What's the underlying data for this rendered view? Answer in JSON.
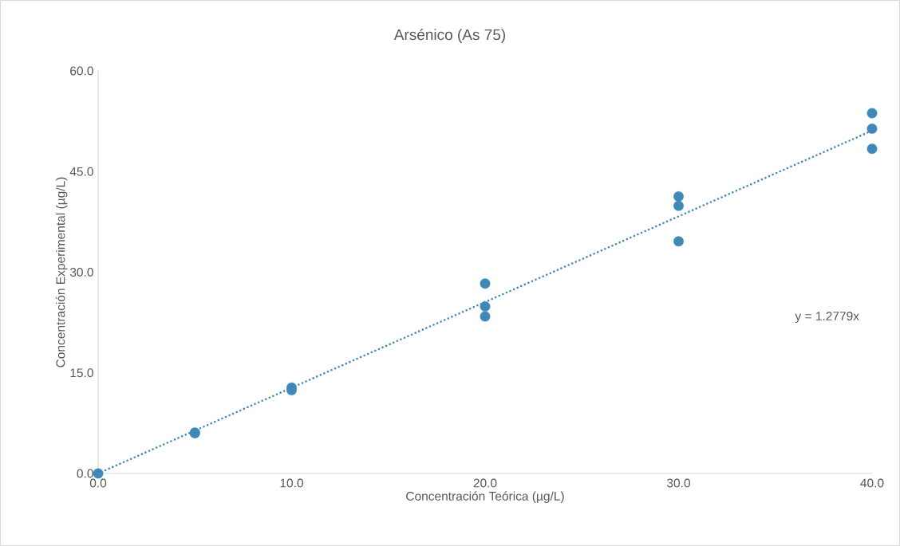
{
  "chart_data": {
    "type": "scatter",
    "title": "Arsénico (As 75)",
    "xlabel": "Concentración Teórica (µg/L)",
    "ylabel": "Concentración Experimental (µg/L)",
    "xlim": [
      0,
      40
    ],
    "ylim": [
      0,
      60
    ],
    "xticks": [
      {
        "value": 0,
        "label": "0.0"
      },
      {
        "value": 10,
        "label": "10.0"
      },
      {
        "value": 20,
        "label": "20.0"
      },
      {
        "value": 30,
        "label": "30.0"
      },
      {
        "value": 40,
        "label": "40.0"
      }
    ],
    "yticks": [
      {
        "value": 0,
        "label": "0.0"
      },
      {
        "value": 15,
        "label": "15.0"
      },
      {
        "value": 30,
        "label": "30.0"
      },
      {
        "value": 45,
        "label": "45.0"
      },
      {
        "value": 60,
        "label": "60.0"
      }
    ],
    "grid": false,
    "series": [
      {
        "marker": "circle",
        "color": "#3f88b8",
        "x": [
          0,
          5,
          5,
          10,
          10,
          20,
          20,
          20,
          30,
          30,
          30,
          40,
          40,
          40
        ],
        "values": [
          0,
          6.0,
          6.1,
          12.8,
          12.4,
          28.3,
          24.9,
          23.4,
          41.3,
          39.9,
          34.6,
          53.7,
          51.4,
          48.4
        ]
      },
      {
        "type": "line",
        "color": "#3f88b8",
        "line_style": "dotted",
        "x": [
          0,
          40
        ],
        "values": [
          0,
          51.1
        ]
      }
    ],
    "annotations": [
      "y = 1.2779x"
    ]
  }
}
